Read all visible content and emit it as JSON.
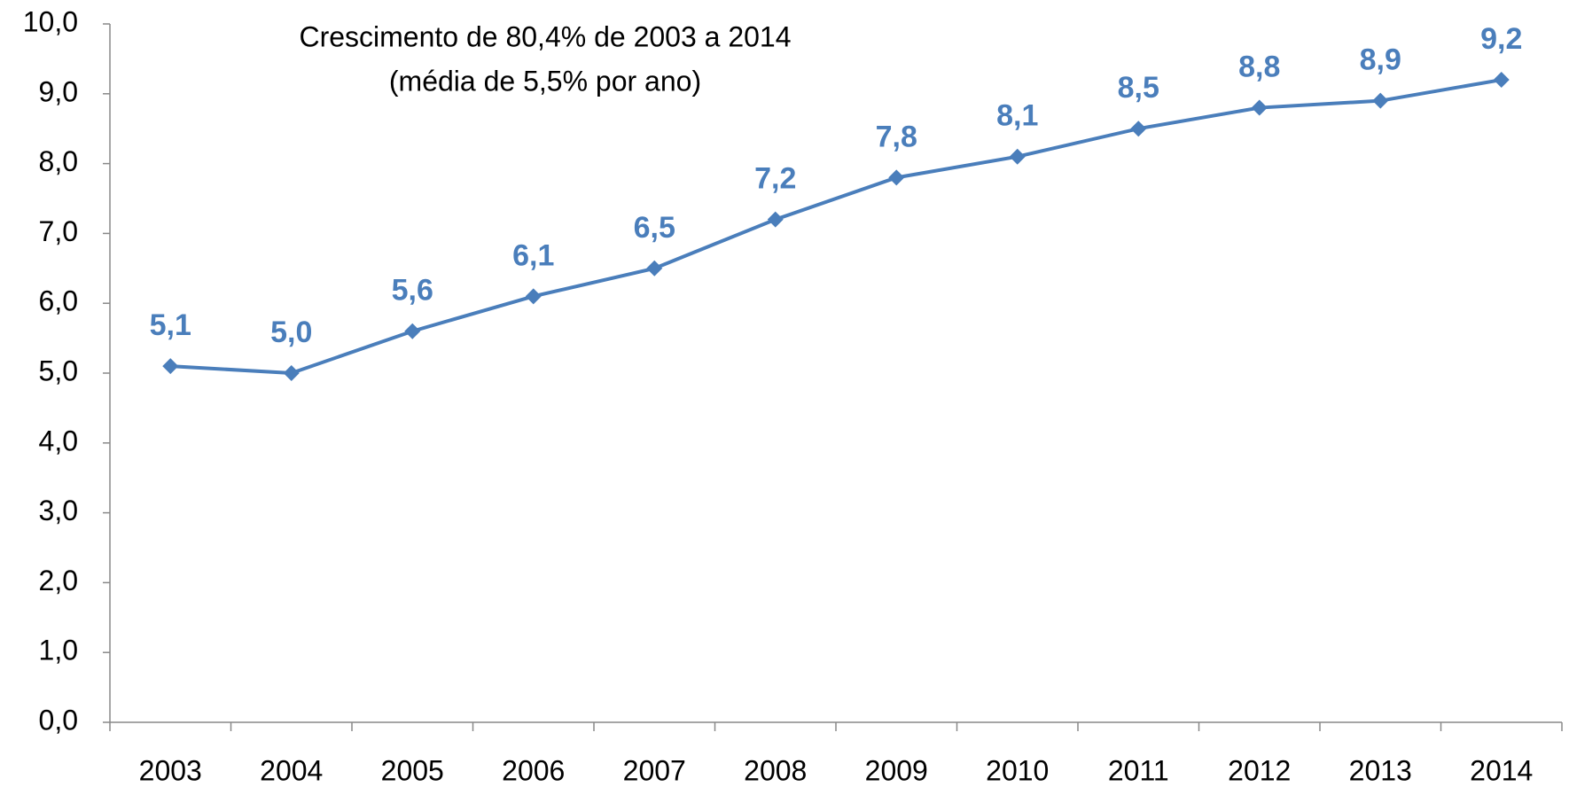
{
  "chart_data": {
    "type": "line",
    "annotation": [
      "Crescimento de 80,4% de 2003 a 2014",
      "(média de 5,5% por ano)"
    ],
    "categories": [
      "2003",
      "2004",
      "2005",
      "2006",
      "2007",
      "2008",
      "2009",
      "2010",
      "2011",
      "2012",
      "2013",
      "2014"
    ],
    "series": [
      {
        "color": "#4a7ebb",
        "values": [
          5.1,
          5.0,
          5.6,
          6.1,
          6.5,
          7.2,
          7.8,
          8.1,
          8.5,
          8.8,
          8.9,
          9.2
        ],
        "value_labels": [
          "5,1",
          "5,0",
          "5,6",
          "6,1",
          "6,5",
          "7,2",
          "7,8",
          "8,1",
          "8,5",
          "8,8",
          "8,9",
          "9,2"
        ]
      }
    ],
    "ylim": [
      0,
      10
    ],
    "yticks": [
      {
        "value": 0,
        "label": "0,0"
      },
      {
        "value": 1,
        "label": "1,0"
      },
      {
        "value": 2,
        "label": "2,0"
      },
      {
        "value": 3,
        "label": "3,0"
      },
      {
        "value": 4,
        "label": "4,0"
      },
      {
        "value": 5,
        "label": "5,0"
      },
      {
        "value": 6,
        "label": "6,0"
      },
      {
        "value": 7,
        "label": "7,0"
      },
      {
        "value": 8,
        "label": "8,0"
      },
      {
        "value": 9,
        "label": "9,0"
      },
      {
        "value": 10,
        "label": "10,0"
      }
    ],
    "grid": false
  }
}
